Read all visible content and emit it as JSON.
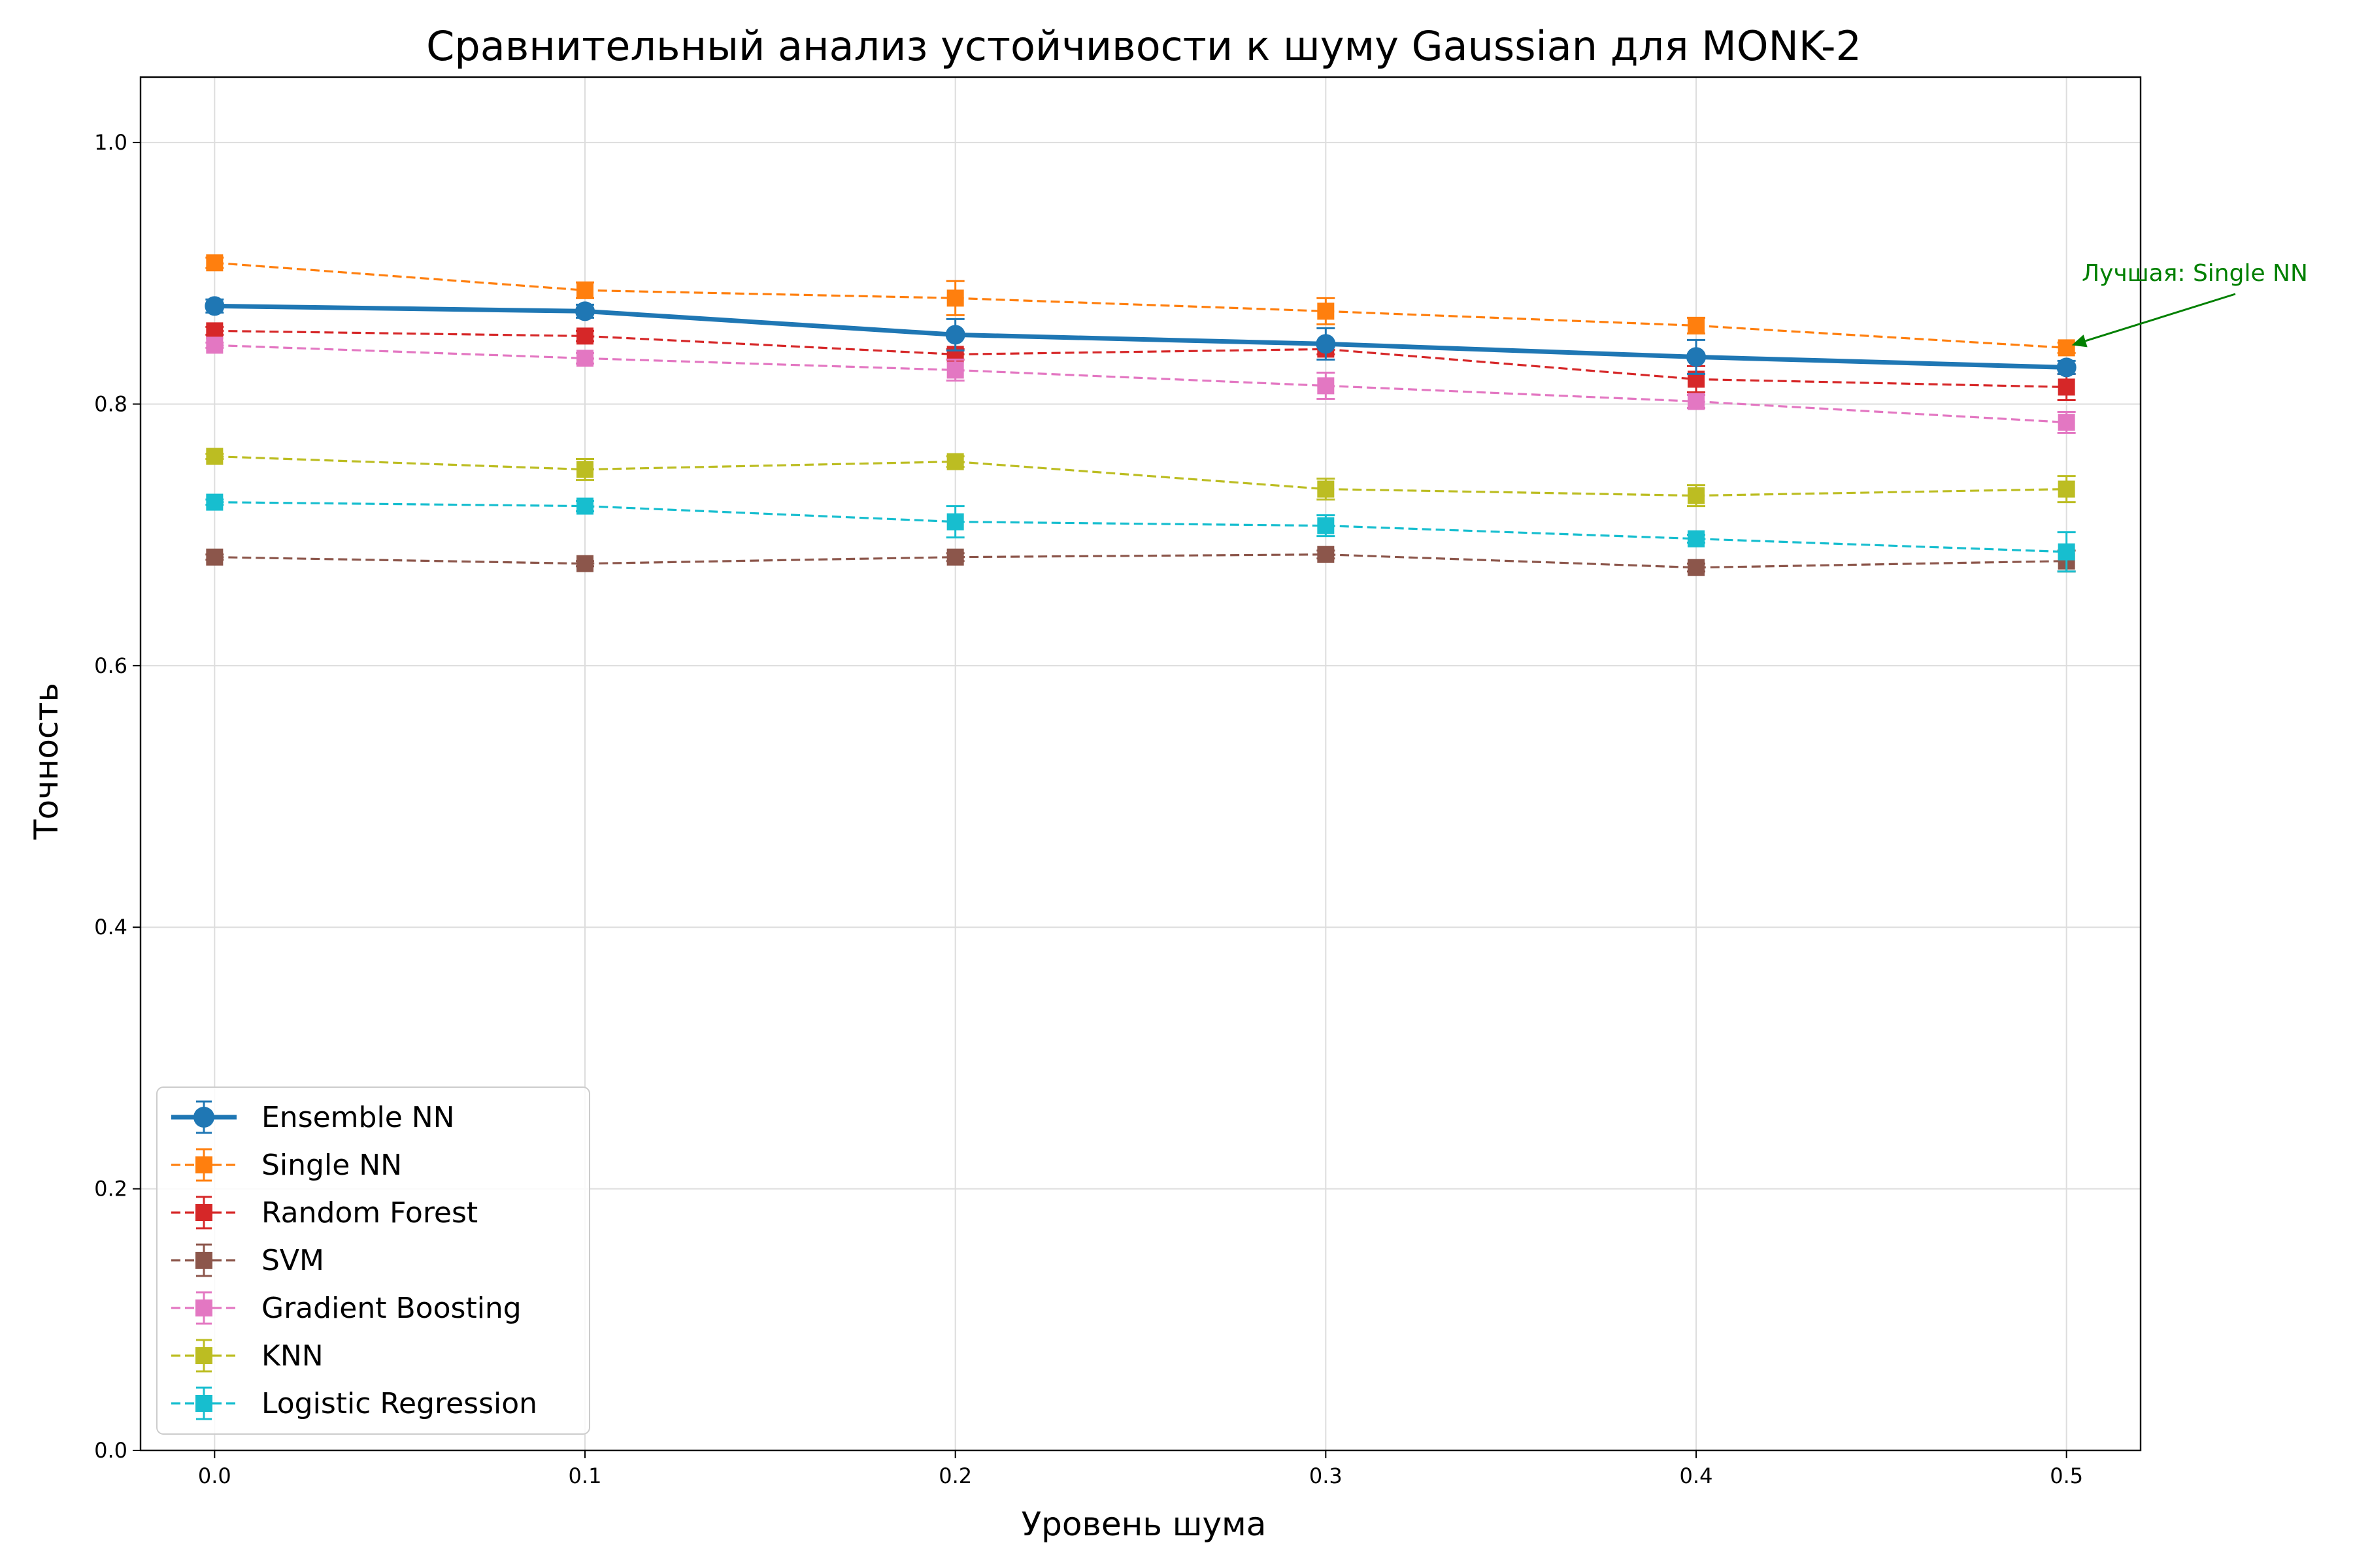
{
  "chart_data": {
    "type": "line",
    "title": "Сравнительный анализ устойчивости к шуму Gaussian для MONK-2",
    "xlabel": "Уровень шума",
    "ylabel": "Точность",
    "x": [
      0.0,
      0.1,
      0.2,
      0.3,
      0.4,
      0.5
    ],
    "x_tick_labels": [
      "0.0",
      "0.1",
      "0.2",
      "0.3",
      "0.4",
      "0.5"
    ],
    "xlim": [
      -0.02,
      0.52
    ],
    "ylim": [
      0.0,
      1.05
    ],
    "y_ticks": [
      0.0,
      0.2,
      0.4,
      0.6,
      0.8,
      1.0
    ],
    "y_tick_labels": [
      "0.0",
      "0.2",
      "0.4",
      "0.6",
      "0.8",
      "1.0"
    ],
    "grid": true,
    "legend_position": "lower-left",
    "series": [
      {
        "name": "Ensemble NN",
        "color": "#1f77b4",
        "marker": "circle",
        "line": "solid",
        "values": [
          0.875,
          0.871,
          0.853,
          0.846,
          0.836,
          0.828
        ],
        "errors": [
          0.005,
          0.005,
          0.012,
          0.012,
          0.013,
          0.005
        ]
      },
      {
        "name": "Single NN",
        "color": "#ff7f0e",
        "marker": "square",
        "line": "dashed",
        "values": [
          0.908,
          0.887,
          0.881,
          0.871,
          0.86,
          0.843
        ],
        "errors": [
          0.004,
          0.006,
          0.013,
          0.01,
          0.006,
          0.004
        ]
      },
      {
        "name": "Random Forest",
        "color": "#d62728",
        "marker": "square",
        "line": "dashed",
        "values": [
          0.856,
          0.852,
          0.838,
          0.842,
          0.819,
          0.813
        ],
        "errors": [
          0.003,
          0.004,
          0.004,
          0.004,
          0.01,
          0.01
        ]
      },
      {
        "name": "SVM",
        "color": "#8c564b",
        "marker": "square",
        "line": "dashed",
        "values": [
          0.683,
          0.678,
          0.683,
          0.685,
          0.675,
          0.68
        ],
        "errors": [
          0.002,
          0.002,
          0.003,
          0.003,
          0.003,
          0.008
        ]
      },
      {
        "name": "Gradient Boosting",
        "color": "#e377c2",
        "marker": "square",
        "line": "dashed",
        "values": [
          0.845,
          0.835,
          0.826,
          0.814,
          0.802,
          0.786
        ],
        "errors": [
          0.002,
          0.004,
          0.008,
          0.01,
          0.005,
          0.008
        ]
      },
      {
        "name": "KNN",
        "color": "#bcbd22",
        "marker": "square",
        "line": "dashed",
        "values": [
          0.76,
          0.75,
          0.756,
          0.735,
          0.73,
          0.735
        ],
        "errors": [
          0.002,
          0.008,
          0.004,
          0.008,
          0.008,
          0.01
        ]
      },
      {
        "name": "Logistic Regression",
        "color": "#17becf",
        "marker": "square",
        "line": "dashed",
        "values": [
          0.725,
          0.722,
          0.71,
          0.707,
          0.697,
          0.687
        ],
        "errors": [
          0.002,
          0.004,
          0.012,
          0.008,
          0.003,
          0.015
        ]
      }
    ],
    "annotations": [
      {
        "text": "Лучшая: Single NN",
        "color": "#008000",
        "x": 0.5,
        "y": 0.843
      }
    ]
  }
}
